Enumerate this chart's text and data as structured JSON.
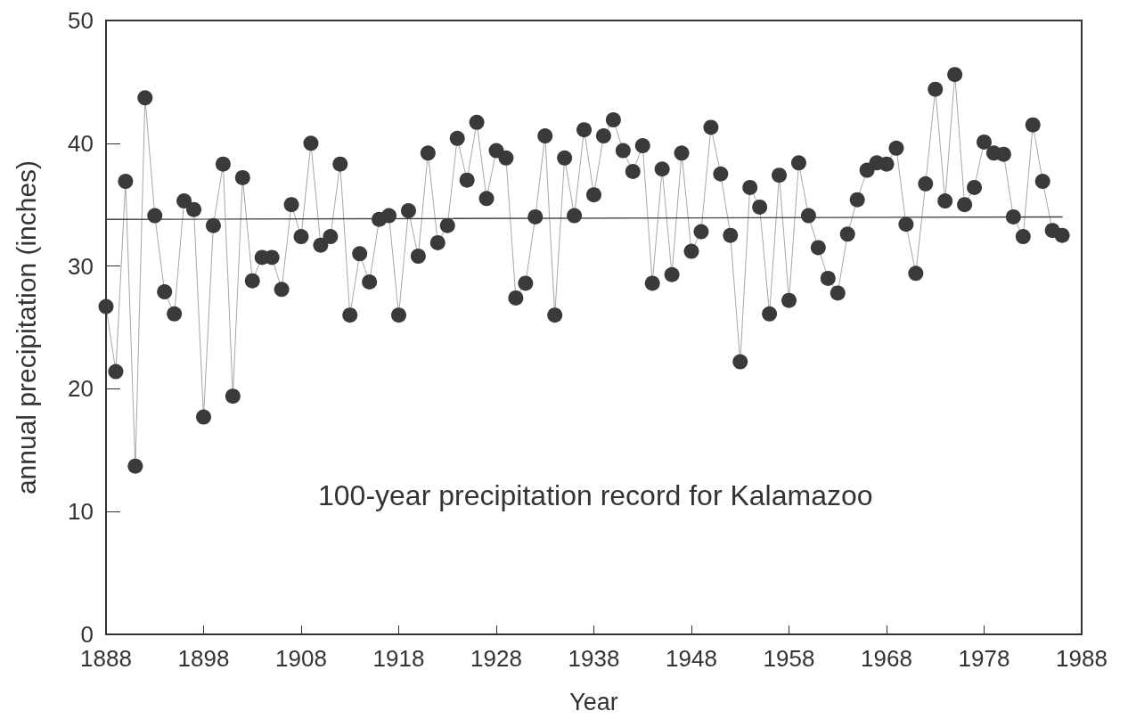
{
  "chart_data": {
    "type": "line",
    "xlabel": "Year",
    "ylabel": "annual precipitation (inches)",
    "annotations": [
      "100-year precipitation record for Kalamazoo"
    ],
    "x": [
      1888,
      1889,
      1890,
      1891,
      1892,
      1893,
      1894,
      1895,
      1896,
      1897,
      1898,
      1899,
      1900,
      1901,
      1902,
      1903,
      1904,
      1905,
      1906,
      1907,
      1908,
      1909,
      1910,
      1911,
      1912,
      1913,
      1914,
      1915,
      1916,
      1917,
      1918,
      1919,
      1920,
      1921,
      1922,
      1923,
      1924,
      1925,
      1926,
      1927,
      1928,
      1929,
      1930,
      1931,
      1932,
      1933,
      1934,
      1935,
      1936,
      1937,
      1938,
      1939,
      1940,
      1941,
      1942,
      1943,
      1944,
      1945,
      1946,
      1947,
      1948,
      1949,
      1950,
      1951,
      1952,
      1953,
      1954,
      1955,
      1956,
      1957,
      1958,
      1959,
      1960,
      1961,
      1962,
      1963,
      1964,
      1965,
      1966,
      1967,
      1968,
      1969,
      1970,
      1971,
      1972,
      1973,
      1974,
      1975,
      1976,
      1977,
      1978,
      1979,
      1980,
      1981,
      1982,
      1983,
      1984,
      1985,
      1986
    ],
    "series": [
      {
        "color": "#3a3a3a",
        "marker": "circle",
        "values": [
          26.7,
          21.4,
          36.9,
          13.7,
          43.7,
          34.1,
          27.9,
          26.1,
          35.3,
          34.6,
          17.7,
          33.3,
          38.3,
          19.4,
          37.2,
          28.8,
          30.7,
          30.7,
          28.1,
          35.0,
          32.4,
          40.0,
          31.7,
          32.4,
          38.3,
          26.0,
          31.0,
          28.7,
          33.8,
          34.1,
          26.0,
          34.5,
          30.8,
          39.2,
          31.9,
          33.3,
          40.4,
          37.0,
          41.7,
          35.5,
          39.4,
          38.8,
          27.4,
          28.6,
          34.0,
          40.6,
          26.0,
          38.8,
          34.1,
          41.1,
          35.8,
          40.6,
          41.9,
          39.4,
          37.7,
          39.8,
          28.6,
          37.9,
          29.3,
          39.2,
          31.2,
          32.8,
          41.3,
          37.5,
          32.5,
          22.2,
          36.4,
          34.8,
          26.1,
          37.4,
          27.2,
          38.4,
          34.1,
          31.5,
          29.0,
          27.8,
          32.6,
          35.4,
          37.8,
          38.4,
          38.3,
          39.6,
          33.4,
          29.4,
          36.7,
          44.4,
          35.3,
          45.6,
          35.0,
          36.4,
          40.1,
          39.2,
          39.1,
          34.0,
          32.4,
          41.5,
          36.9,
          32.9,
          32.5
        ]
      },
      {
        "type": "line",
        "color": "#404040",
        "marker": "none",
        "x": [
          1888,
          1986
        ],
        "values": [
          33.8,
          34.0
        ]
      }
    ],
    "xlim": [
      1888,
      1988
    ],
    "xticks": [
      1888,
      1898,
      1908,
      1918,
      1928,
      1938,
      1948,
      1958,
      1968,
      1978,
      1988
    ],
    "ylim": [
      0,
      50
    ],
    "yticks": [
      0,
      10,
      20,
      30,
      40,
      50
    ],
    "grid": false
  }
}
